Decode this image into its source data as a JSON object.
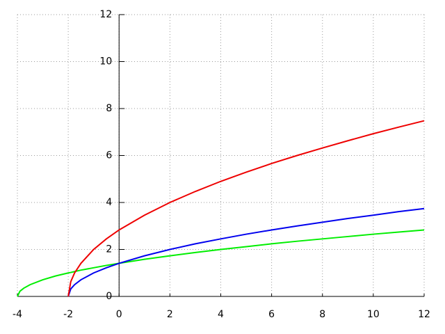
{
  "chart_data": {
    "type": "line",
    "x": [
      -4,
      -3.9,
      -3.75,
      -3.5,
      -3,
      -2.5,
      -2,
      -1.9,
      -1.75,
      -1.5,
      -1,
      -0.5,
      0,
      1,
      2,
      3,
      4,
      5,
      6,
      7,
      8,
      9,
      10,
      11,
      12
    ],
    "series": [
      {
        "color": "#00ee00",
        "values": [
          0,
          0.22,
          0.35,
          0.5,
          0.71,
          0.87,
          1,
          1.02,
          1.06,
          1.12,
          1.22,
          1.32,
          1.41,
          1.58,
          1.73,
          1.87,
          2,
          2.12,
          2.24,
          2.35,
          2.45,
          2.55,
          2.65,
          2.74,
          2.83
        ]
      },
      {
        "color": "#0000ee",
        "values": [
          null,
          null,
          null,
          null,
          null,
          null,
          0,
          0.32,
          0.5,
          0.71,
          1,
          1.22,
          1.41,
          1.73,
          2,
          2.24,
          2.45,
          2.65,
          2.83,
          3,
          3.16,
          3.32,
          3.46,
          3.61,
          3.74
        ]
      },
      {
        "color": "#ee0000",
        "values": [
          null,
          null,
          null,
          null,
          null,
          null,
          0,
          0.63,
          1,
          1.41,
          2,
          2.45,
          2.83,
          3.46,
          4,
          4.47,
          4.9,
          5.29,
          5.66,
          6,
          6.32,
          6.63,
          6.93,
          7.21,
          7.48
        ]
      }
    ],
    "xlim": [
      -4,
      12
    ],
    "xticks": [
      -4,
      -2,
      0,
      2,
      4,
      6,
      8,
      10,
      12
    ],
    "ylim": [
      0,
      12
    ],
    "yticks": [
      0,
      2,
      4,
      6,
      8,
      10,
      12
    ],
    "grid": true
  }
}
